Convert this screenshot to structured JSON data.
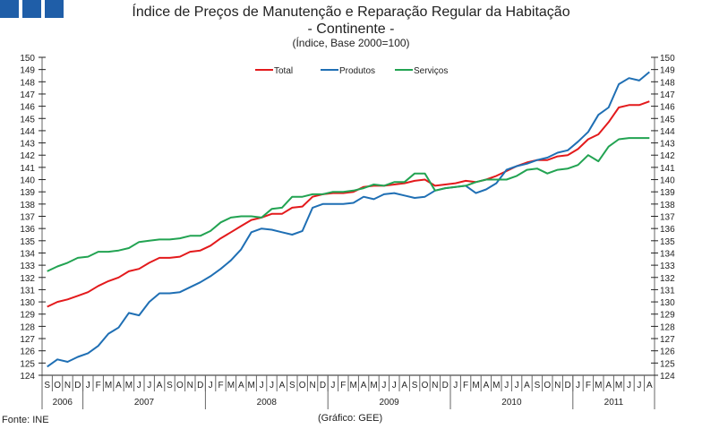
{
  "header": {
    "title_line1": "Índice de Preços de Manutenção e Reparação Regular da Habitação",
    "title_line2": "- Continente -",
    "subtitle": "(Índice, Base 2000=100)"
  },
  "footer": {
    "source": "Fonte: INE",
    "credit": "(Gráfico: GEE)"
  },
  "colors": {
    "logo": "#1f5ea8",
    "Total": "#e31a1c",
    "Produtos": "#1f6fb4",
    "Serviços": "#22a352"
  },
  "chart_data": {
    "type": "line",
    "title": "Índice de Preços de Manutenção e Reparação Regular da Habitação - Continente -",
    "subtitle": "(Índice, Base 2000=100)",
    "ylim": [
      124,
      150
    ],
    "yticks": [
      124,
      125,
      126,
      127,
      128,
      129,
      130,
      131,
      132,
      133,
      134,
      135,
      136,
      137,
      138,
      139,
      140,
      141,
      142,
      143,
      144,
      145,
      146,
      147,
      148,
      149,
      150
    ],
    "y_axis_both_sides": true,
    "grid": false,
    "legend": "top-center",
    "month_labels": [
      "S",
      "O",
      "N",
      "D",
      "J",
      "F",
      "M",
      "A",
      "M",
      "J",
      "J",
      "A",
      "S",
      "O",
      "N",
      "D",
      "J",
      "F",
      "M",
      "A",
      "M",
      "J",
      "J",
      "A",
      "S",
      "O",
      "N",
      "D",
      "J",
      "F",
      "M",
      "A",
      "M",
      "J",
      "J",
      "A",
      "S",
      "O",
      "N",
      "D",
      "J",
      "F",
      "M",
      "A",
      "M",
      "J",
      "J",
      "A",
      "S",
      "O",
      "N",
      "D",
      "J",
      "F",
      "M",
      "A",
      "M",
      "J",
      "J",
      "A"
    ],
    "years": [
      {
        "label": "2006",
        "months": 4
      },
      {
        "label": "2007",
        "months": 12
      },
      {
        "label": "2008",
        "months": 12
      },
      {
        "label": "2009",
        "months": 12
      },
      {
        "label": "2010",
        "months": 12
      },
      {
        "label": "2011",
        "months": 8
      }
    ],
    "series": [
      {
        "name": "Total",
        "values": [
          129.6,
          130.0,
          130.2,
          130.5,
          130.8,
          131.3,
          131.7,
          132.0,
          132.5,
          132.7,
          133.2,
          133.6,
          133.6,
          133.7,
          134.1,
          134.2,
          134.6,
          135.2,
          135.7,
          136.2,
          136.7,
          136.9,
          137.2,
          137.2,
          137.7,
          137.8,
          138.6,
          138.8,
          138.9,
          138.9,
          139.0,
          139.4,
          139.5,
          139.5,
          139.6,
          139.7,
          139.9,
          140.0,
          139.5,
          139.6,
          139.7,
          139.9,
          139.8,
          140.0,
          140.3,
          140.7,
          141.1,
          141.4,
          141.6,
          141.6,
          141.9,
          142.0,
          142.5,
          143.3,
          143.7,
          144.7,
          145.9,
          146.1,
          146.1,
          146.4
        ]
      },
      {
        "name": "Produtos",
        "values": [
          124.7,
          125.3,
          125.1,
          125.5,
          125.8,
          126.4,
          127.4,
          127.9,
          129.1,
          128.9,
          130.0,
          130.7,
          130.7,
          130.8,
          131.2,
          131.6,
          132.1,
          132.7,
          133.4,
          134.3,
          135.7,
          136.0,
          135.9,
          135.7,
          135.5,
          135.8,
          137.7,
          138.0,
          138.0,
          138.0,
          138.1,
          138.6,
          138.4,
          138.8,
          138.9,
          138.7,
          138.5,
          138.6,
          139.1,
          139.3,
          139.4,
          139.5,
          138.9,
          139.2,
          139.7,
          140.8,
          141.1,
          141.3,
          141.6,
          141.8,
          142.2,
          142.4,
          143.1,
          143.9,
          145.3,
          145.9,
          147.8,
          148.3,
          148.1,
          148.8
        ]
      },
      {
        "name": "Serviços",
        "values": [
          132.5,
          132.9,
          133.2,
          133.6,
          133.7,
          134.1,
          134.1,
          134.2,
          134.4,
          134.9,
          135.0,
          135.1,
          135.1,
          135.2,
          135.4,
          135.4,
          135.8,
          136.5,
          136.9,
          137.0,
          137.0,
          136.9,
          137.6,
          137.7,
          138.6,
          138.6,
          138.8,
          138.8,
          139.0,
          139.0,
          139.1,
          139.3,
          139.6,
          139.5,
          139.8,
          139.8,
          140.5,
          140.5,
          139.1,
          139.3,
          139.4,
          139.5,
          139.8,
          140.0,
          140.0,
          140.0,
          140.3,
          140.8,
          140.9,
          140.5,
          140.8,
          140.9,
          141.2,
          142.0,
          141.5,
          142.7,
          143.3,
          143.4,
          143.4,
          143.4
        ]
      }
    ]
  }
}
